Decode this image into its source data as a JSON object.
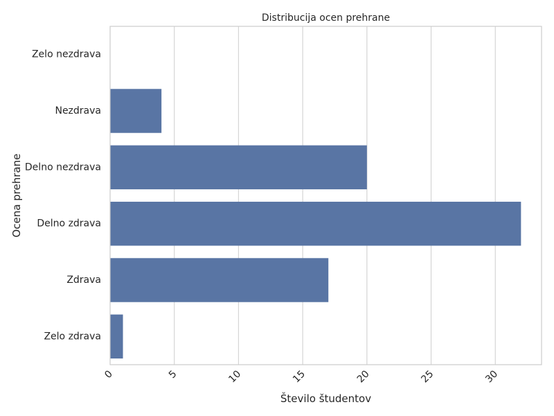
{
  "chart_data": {
    "type": "bar",
    "orientation": "horizontal",
    "title": "Distribucija ocen prehrane",
    "xlabel": "Število študentov",
    "ylabel": "Ocena prehrane",
    "categories": [
      "Zelo nezdrava",
      "Nezdrava",
      "Delno nezdrava",
      "Delno zdrava",
      "Zdrava",
      "Zelo zdrava"
    ],
    "values": [
      0,
      4,
      20,
      32,
      17,
      1
    ],
    "xlim": [
      0,
      33.6
    ],
    "xticks": [
      0,
      5,
      10,
      15,
      20,
      25,
      30
    ],
    "xtick_labels": [
      "0",
      "5",
      "10",
      "15",
      "20",
      "25",
      "30"
    ],
    "grid": true,
    "bar_color": "#5975a4",
    "grid_color": "#d5d5d5",
    "spine_color": "#cccccc"
  }
}
